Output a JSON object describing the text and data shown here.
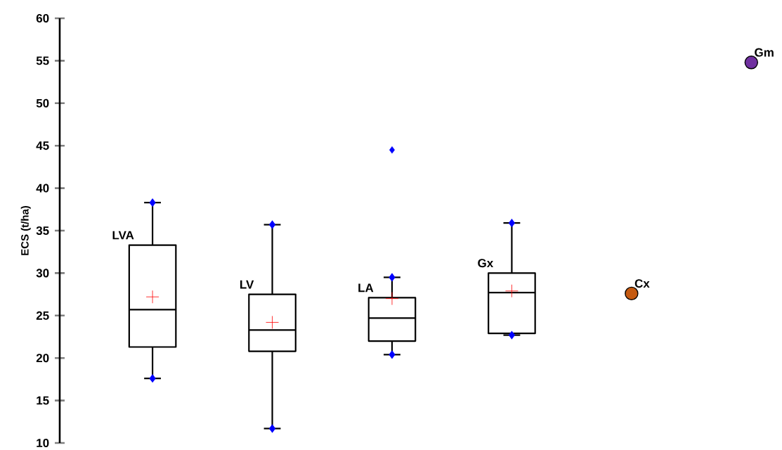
{
  "chart_data": {
    "type": "box",
    "ylabel": "ECS (t/ha)",
    "categories": [
      "LVA",
      "LV",
      "LA",
      "Gx",
      "Cx",
      "Gm"
    ],
    "boxes": [
      {
        "low": 17.6,
        "q1": 21.3,
        "median": 25.7,
        "q3": 33.3,
        "high": 38.3,
        "mean": 27.2
      },
      {
        "low": 11.7,
        "q1": 20.8,
        "median": 23.3,
        "q3": 27.5,
        "high": 35.7,
        "mean": 24.2
      },
      {
        "low": 20.4,
        "q1": 22.0,
        "median": 24.7,
        "q3": 27.1,
        "high": 29.5,
        "mean": 27.0,
        "outliers": [
          44.5
        ]
      },
      {
        "low": 22.7,
        "q1": 22.9,
        "median": 27.7,
        "q3": 30.0,
        "high": 35.9,
        "mean": 27.9
      },
      null,
      null
    ],
    "series": [
      {
        "type": "scatter",
        "x": [
          "LVA",
          "LV",
          "LA",
          "Gx"
        ],
        "values": [
          17.6,
          11.7,
          20.4,
          22.7
        ],
        "color": "#0000ff",
        "marker": "diamond"
      },
      {
        "type": "scatter",
        "x": [
          "LVA",
          "LV",
          "LA",
          "Gx"
        ],
        "values": [
          38.3,
          35.7,
          29.5,
          35.9
        ],
        "color": "#0000ff",
        "marker": "diamond"
      },
      {
        "type": "scatter",
        "x": [
          "Cx"
        ],
        "values": [
          27.6
        ],
        "color": "#c55a11"
      },
      {
        "type": "scatter",
        "x": [
          "Gm"
        ],
        "values": [
          54.8
        ],
        "color": "#7030a0"
      }
    ],
    "marker": "circle",
    "ylim": [
      10,
      60
    ],
    "yticks": [
      10,
      15,
      20,
      25,
      30,
      35,
      40,
      45,
      50,
      55,
      60
    ],
    "tick_labels": "y"
  }
}
